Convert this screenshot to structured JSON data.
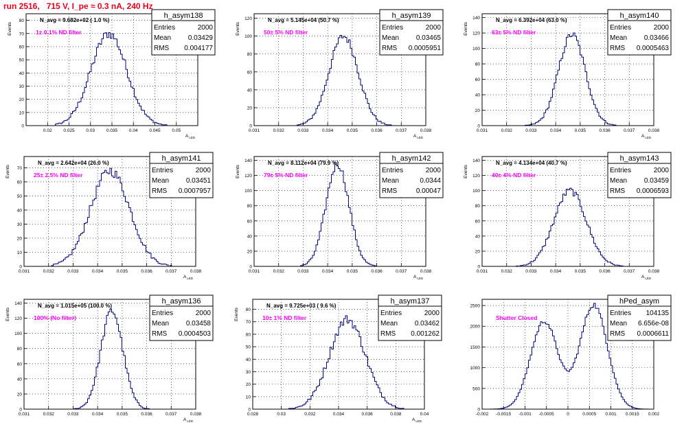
{
  "page_title": "run 2516,   715 V, I_pe ≈ 0.3 nA, 240 Hz",
  "stat_labels": {
    "entries": "Entries",
    "mean": "Mean",
    "rms": "RMS"
  },
  "colors": {
    "histogram": "#000080",
    "annotation": "#ff00ff",
    "title": "#e8001c",
    "grid": "#000000"
  },
  "chart_data": [
    {
      "type": "bar",
      "name": "h_asym138",
      "navg": "N_avg = 9.682e+02 ( 1.0 %)",
      "annotation": "1± 0.1% ND filter",
      "entries": "2000",
      "mean": "0.03429",
      "rms": "0.004177",
      "xlabel": "A_LED",
      "ylabel": "Events",
      "xlim": [
        0.015,
        0.055
      ],
      "ylim": [
        0,
        85
      ],
      "xticks": [
        "0.02",
        "0.025",
        "0.03",
        "0.035",
        "0.04",
        "0.045",
        "0.05"
      ],
      "yticks": [
        "0",
        "10",
        "20",
        "30",
        "40",
        "50",
        "60",
        "70",
        "80"
      ],
      "profile": {
        "type": "gauss",
        "mu": 0.03429,
        "sigma": 0.004177,
        "peak": 70
      },
      "grid": true
    },
    {
      "type": "bar",
      "name": "h_asym139",
      "navg": "N_avg = 5.145e+04 (50.7 %)",
      "annotation": "50± 5% ND filter",
      "entries": "2000",
      "mean": "0.03465",
      "rms": "0.0005951",
      "xlabel": "A_LED",
      "ylabel": "Events",
      "xlim": [
        0.031,
        0.038
      ],
      "ylim": [
        0,
        125
      ],
      "xticks": [
        "0.031",
        "0.032",
        "0.033",
        "0.034",
        "0.035",
        "0.036",
        "0.037",
        "0.038"
      ],
      "yticks": [
        "0",
        "20",
        "40",
        "60",
        "80",
        "100",
        "120"
      ],
      "profile": {
        "type": "gauss",
        "mu": 0.03465,
        "sigma": 0.0005951,
        "peak": 100
      },
      "grid": true
    },
    {
      "type": "bar",
      "name": "h_asym140",
      "navg": "N_avg = 6.392e+04 (63.0 %)",
      "annotation": "63± 5% ND filter",
      "entries": "2000",
      "mean": "0.03466",
      "rms": "0.0005463",
      "xlabel": "A_LED",
      "ylabel": "Events",
      "xlim": [
        0.031,
        0.038
      ],
      "ylim": [
        0,
        145
      ],
      "xticks": [
        "0.031",
        "0.032",
        "0.033",
        "0.034",
        "0.035",
        "0.036",
        "0.037",
        "0.038"
      ],
      "yticks": [
        "0",
        "20",
        "40",
        "60",
        "80",
        "100",
        "120",
        "140"
      ],
      "profile": {
        "type": "gauss",
        "mu": 0.03466,
        "sigma": 0.0005463,
        "peak": 118
      },
      "grid": true
    },
    {
      "type": "bar",
      "name": "h_asym141",
      "navg": "N_avg = 2.642e+04 (26.0 %)",
      "annotation": "25± 2.5% ND filter",
      "entries": "2000",
      "mean": "0.03451",
      "rms": "0.0007957",
      "xlabel": "A_LED",
      "ylabel": "Events",
      "xlim": [
        0.031,
        0.038
      ],
      "ylim": [
        0,
        78
      ],
      "xticks": [
        "0.031",
        "0.032",
        "0.033",
        "0.034",
        "0.035",
        "0.036",
        "0.037",
        "0.038"
      ],
      "yticks": [
        "0",
        "10",
        "20",
        "30",
        "40",
        "50",
        "60",
        "70"
      ],
      "profile": {
        "type": "gauss",
        "mu": 0.03451,
        "sigma": 0.0007957,
        "peak": 68
      },
      "grid": true
    },
    {
      "type": "bar",
      "name": "h_asym142",
      "navg": "N_avg = 8.112e+04 (79.9 %)",
      "annotation": "79± 5% ND filter",
      "entries": "2000",
      "mean": "0.0344",
      "rms": "0.00047",
      "xlabel": "A_LED",
      "ylabel": "Events",
      "xlim": [
        0.031,
        0.038
      ],
      "ylim": [
        0,
        145
      ],
      "xticks": [
        "0.031",
        "0.032",
        "0.033",
        "0.034",
        "0.035",
        "0.036",
        "0.037",
        "0.038"
      ],
      "yticks": [
        "0",
        "20",
        "40",
        "60",
        "80",
        "100",
        "120",
        "140"
      ],
      "profile": {
        "type": "gauss",
        "mu": 0.0344,
        "sigma": 0.00047,
        "peak": 135
      },
      "grid": true
    },
    {
      "type": "bar",
      "name": "h_asym143",
      "navg": "N_avg = 4.134e+04 (40.7 %)",
      "annotation": "40± 4% ND filter",
      "entries": "2000",
      "mean": "0.03459",
      "rms": "0.0006593",
      "xlabel": "A_LED",
      "ylabel": "Events",
      "xlim": [
        0.031,
        0.038
      ],
      "ylim": [
        0,
        145
      ],
      "xticks": [
        "0.031",
        "0.032",
        "0.033",
        "0.034",
        "0.035",
        "0.036",
        "0.037",
        "0.038"
      ],
      "yticks": [
        "0",
        "20",
        "40",
        "60",
        "80",
        "100",
        "120",
        "140"
      ],
      "profile": {
        "type": "gauss",
        "mu": 0.03459,
        "sigma": 0.0006593,
        "peak": 100
      },
      "grid": true
    },
    {
      "type": "bar",
      "name": "h_asym136",
      "navg": "N_avg = 1.015e+05 (100.0 %)",
      "annotation": "100% (No filter)",
      "entries": "2000",
      "mean": "0.03458",
      "rms": "0.0004503",
      "xlabel": "A_LED",
      "ylabel": "Events",
      "xlim": [
        0.031,
        0.038
      ],
      "ylim": [
        0,
        145
      ],
      "xticks": [
        "0.031",
        "0.032",
        "0.033",
        "0.034",
        "0.035",
        "0.036",
        "0.037",
        "0.038"
      ],
      "yticks": [
        "0",
        "20",
        "40",
        "60",
        "80",
        "100",
        "120",
        "140"
      ],
      "profile": {
        "type": "gauss",
        "mu": 0.03458,
        "sigma": 0.0004503,
        "peak": 130
      },
      "grid": true
    },
    {
      "type": "bar",
      "name": "h_asym137",
      "navg": "N_avg = 9.725e+03 ( 9.6 %)",
      "annotation": "10± 1% ND filter",
      "entries": "2000",
      "mean": "0.03462",
      "rms": "0.001262",
      "xlabel": "A_LED",
      "ylabel": "Events",
      "xlim": [
        0.028,
        0.04
      ],
      "ylim": [
        0,
        88
      ],
      "xticks": [
        "0.028",
        "0.03",
        "0.032",
        "0.034",
        "0.036",
        "0.038",
        "0.04"
      ],
      "yticks": [
        "0",
        "10",
        "20",
        "30",
        "40",
        "50",
        "60",
        "70",
        "80"
      ],
      "profile": {
        "type": "gauss",
        "mu": 0.03462,
        "sigma": 0.001262,
        "peak": 72
      },
      "grid": true
    },
    {
      "type": "bar",
      "name": "hPed_asym",
      "navg": "",
      "annotation": "Shutter Closed",
      "entries": "104135",
      "mean": "6.656e-08",
      "rms": "0.0006611",
      "xlabel": "",
      "ylabel": "",
      "xlim": [
        -0.002,
        0.002
      ],
      "ylim": [
        0,
        2650
      ],
      "xticks": [
        "-0.002",
        "-0.0015",
        "-0.001",
        "-0.0005",
        "0",
        "0.0005",
        "0.001",
        "0.0015",
        "0.002"
      ],
      "yticks": [
        "0",
        "500",
        "1000",
        "1500",
        "2000",
        "2500"
      ],
      "profile": {
        "type": "bimodal",
        "mu1": -0.00055,
        "mu2": 0.0006,
        "sigma": 0.00032,
        "peak1": 2120,
        "peak2": 2520
      },
      "grid": true
    }
  ]
}
